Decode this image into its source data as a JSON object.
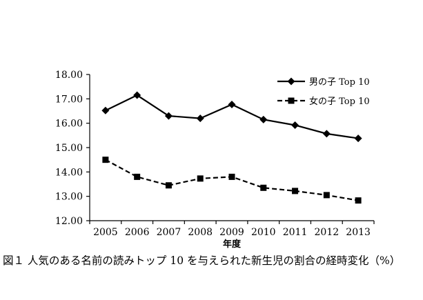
{
  "caption": "図１ 人気のある名前の読みトップ 10 を与えられた新生児の割合の経時変化（%）",
  "chart_data": {
    "type": "line",
    "title": "",
    "xlabel": "年度",
    "ylabel": "",
    "x": [
      "2005",
      "2006",
      "2007",
      "2008",
      "2009",
      "2010",
      "2011",
      "2012",
      "2013"
    ],
    "ylim": [
      12.0,
      18.0
    ],
    "yticks": [
      "12.00",
      "13.00",
      "14.00",
      "15.00",
      "16.00",
      "17.00",
      "18.00"
    ],
    "grid": false,
    "legend_position": "top-right",
    "series": [
      {
        "name": "男の子 Top 10",
        "line": "solid",
        "marker": "diamond",
        "values": [
          16.52,
          17.15,
          16.3,
          16.2,
          16.77,
          16.15,
          15.92,
          15.57,
          15.38
        ]
      },
      {
        "name": "女の子 Top 10",
        "line": "dashed",
        "marker": "square",
        "values": [
          14.5,
          13.8,
          13.45,
          13.73,
          13.8,
          13.35,
          13.22,
          13.05,
          12.83
        ]
      }
    ]
  }
}
